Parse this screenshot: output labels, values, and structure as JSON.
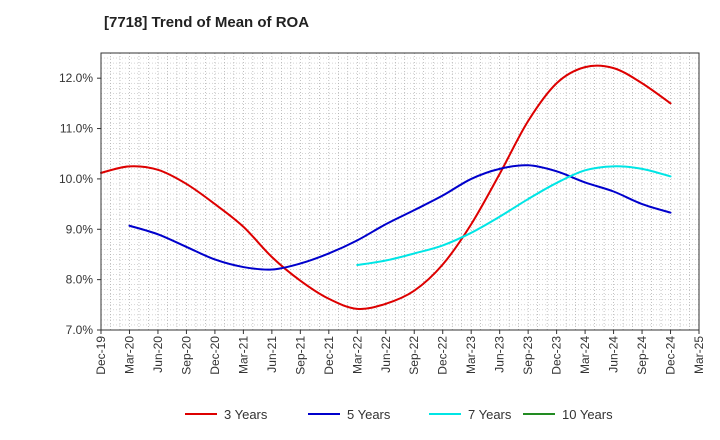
{
  "chart_data": {
    "type": "line",
    "title": "[7718]  Trend of Mean of ROA",
    "xlabel": "",
    "ylabel": "",
    "x_ticks": [
      "Dec-19",
      "Mar-20",
      "Jun-20",
      "Sep-20",
      "Dec-20",
      "Mar-21",
      "Jun-21",
      "Sep-21",
      "Dec-21",
      "Mar-22",
      "Jun-22",
      "Sep-22",
      "Dec-22",
      "Mar-23",
      "Jun-23",
      "Sep-23",
      "Dec-23",
      "Mar-24",
      "Jun-24",
      "Sep-24",
      "Dec-24",
      "Mar-25"
    ],
    "y_ticks": [
      "7.0%",
      "8.0%",
      "9.0%",
      "10.0%",
      "11.0%",
      "12.0%"
    ],
    "ylim": [
      7.0,
      12.5
    ],
    "grid": true,
    "legend_position": "bottom",
    "series": [
      {
        "name": "3 Years",
        "color": "#dd0000",
        "x": [
          "Dec-19",
          "Mar-20",
          "Jun-20",
          "Sep-20",
          "Dec-20",
          "Mar-21",
          "Jun-21",
          "Sep-21",
          "Dec-21",
          "Mar-22",
          "Jun-22",
          "Sep-22",
          "Dec-22",
          "Mar-23",
          "Jun-23",
          "Sep-23",
          "Dec-23",
          "Mar-24",
          "Jun-24",
          "Sep-24",
          "Dec-24"
        ],
        "values": [
          10.12,
          10.25,
          10.18,
          9.9,
          9.5,
          9.05,
          8.45,
          7.98,
          7.62,
          7.42,
          7.52,
          7.78,
          8.3,
          9.1,
          10.1,
          11.15,
          11.9,
          12.22,
          12.2,
          11.9,
          11.5
        ]
      },
      {
        "name": "5 Years",
        "color": "#0000cc",
        "x": [
          "Mar-20",
          "Jun-20",
          "Sep-20",
          "Dec-20",
          "Mar-21",
          "Jun-21",
          "Sep-21",
          "Dec-21",
          "Mar-22",
          "Jun-22",
          "Sep-22",
          "Dec-22",
          "Mar-23",
          "Jun-23",
          "Sep-23",
          "Dec-23",
          "Mar-24",
          "Jun-24",
          "Sep-24",
          "Dec-24"
        ],
        "values": [
          9.07,
          8.9,
          8.65,
          8.4,
          8.25,
          8.2,
          8.32,
          8.52,
          8.78,
          9.1,
          9.38,
          9.67,
          10.0,
          10.2,
          10.27,
          10.15,
          9.93,
          9.75,
          9.5,
          9.33
        ]
      },
      {
        "name": "7 Years",
        "color": "#00e5e5",
        "x": [
          "Mar-22",
          "Jun-22",
          "Sep-22",
          "Dec-22",
          "Mar-23",
          "Jun-23",
          "Sep-23",
          "Dec-23",
          "Mar-24",
          "Jun-24",
          "Sep-24",
          "Dec-24"
        ],
        "values": [
          8.29,
          8.38,
          8.52,
          8.68,
          8.93,
          9.25,
          9.6,
          9.92,
          10.17,
          10.25,
          10.2,
          10.05
        ]
      },
      {
        "name": "10 Years",
        "color": "#228b22",
        "x": [],
        "values": []
      }
    ]
  }
}
